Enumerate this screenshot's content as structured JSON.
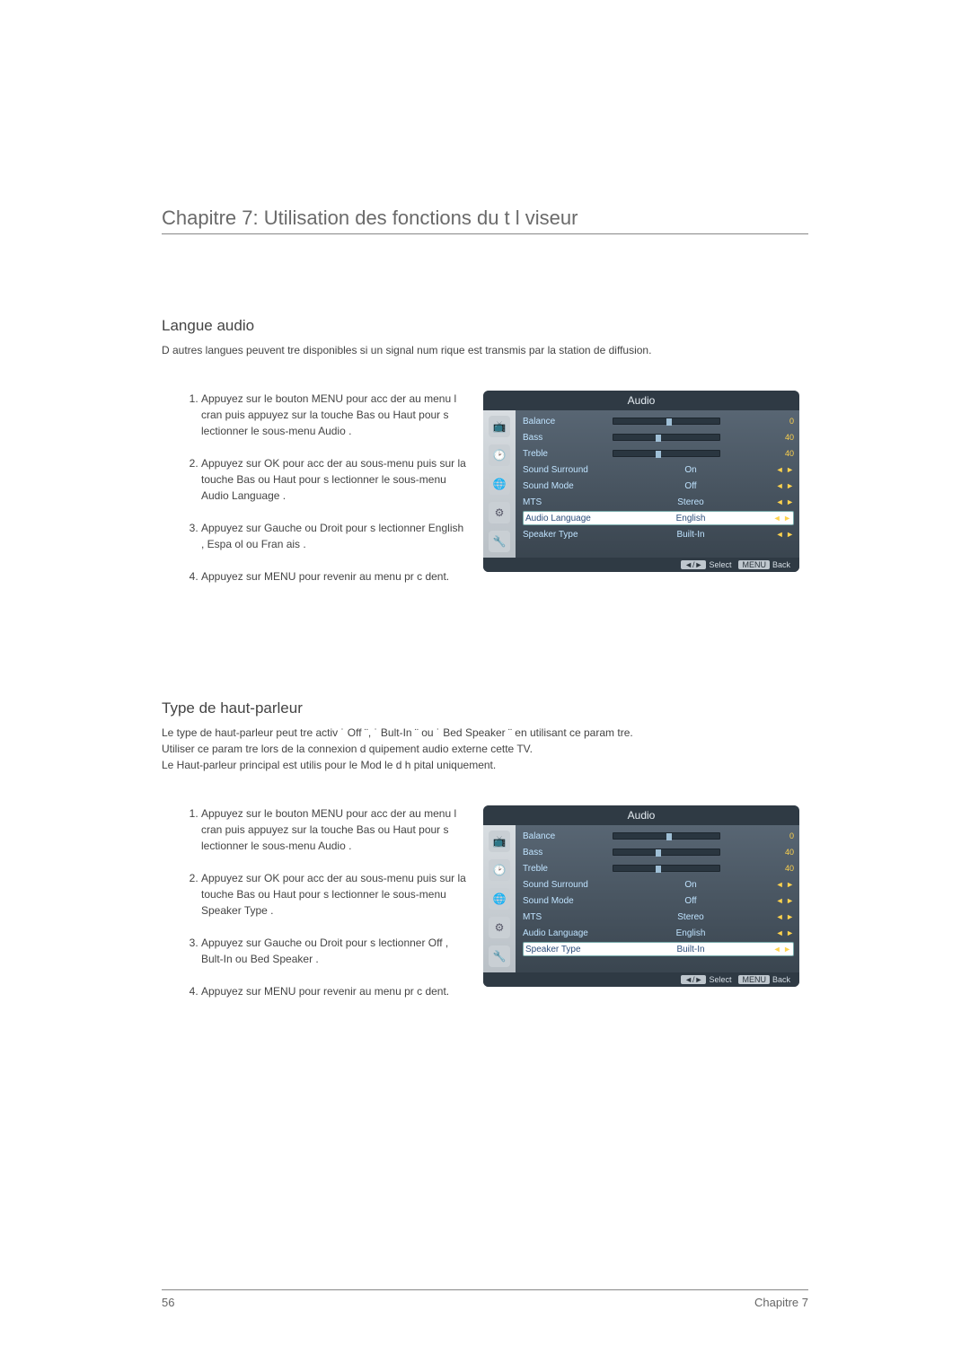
{
  "chapter": {
    "title": "Chapitre 7: Utilisation des fonctions du t l viseur"
  },
  "footer": {
    "page_num": "56",
    "chapter_label": "Chapitre 7"
  },
  "section1": {
    "title": "Langue audio",
    "intro": "D autres langues peuvent  tre disponibles si un signal num rique est transmis par la station de diffusion.",
    "steps": [
      "Appuyez sur le bouton   MENU  pour acc der au menu   l  cran puis appuyez sur la touche    Bas ou Haut   pour s lectionner le sous-menu    Audio .",
      "Appuyez sur  OK  pour acc der au sous-menu puis sur la touche  Bas  ou  Haut   pour s lectionner le sous-menu  Audio Language      .",
      "Appuyez sur  Gauche  ou  Droit   pour s lectionner   English ,  Espa ol   ou  Fran ais  .",
      "Appuyez sur  MENU  pour revenir au menu pr c dent."
    ],
    "osd": {
      "title": "Audio",
      "rows": [
        {
          "label": "Balance",
          "type": "slider",
          "percent": 50,
          "value": "0",
          "arrows": ""
        },
        {
          "label": "Bass",
          "type": "slider",
          "percent": 40,
          "value": "40",
          "arrows": ""
        },
        {
          "label": "Treble",
          "type": "slider",
          "percent": 40,
          "value": "40",
          "arrows": ""
        },
        {
          "label": "Sound Surround",
          "type": "text",
          "value": "On",
          "arrows": "◄  ►"
        },
        {
          "label": "Sound Mode",
          "type": "text",
          "value": "Off",
          "arrows": "◄  ►"
        },
        {
          "label": "MTS",
          "type": "text",
          "value": "Stereo",
          "arrows": "◄  ►"
        },
        {
          "label": "Audio Language",
          "type": "text",
          "value": "English",
          "arrows": "◄  ►",
          "highlight": true
        },
        {
          "label": "Speaker Type",
          "type": "text",
          "value": "Built-In",
          "arrows": "◄  ►"
        }
      ],
      "footer_nav": "◄/►",
      "footer_select": "Select",
      "footer_menu": "MENU",
      "footer_back": "Back"
    }
  },
  "section2": {
    "title": "Type de haut-parleur",
    "intro_line1": "Le type de haut-parleur peut  tre activ   ˙ Off ¨, ˙ Bult-In ¨ ou ˙ Bed Speaker ¨ en utilisant ce param tre.",
    "intro_line2": "Utiliser ce param tre lors de la connexion d  quipement audio externe   cette TV.",
    "intro_line3": "Le Haut-parleur principal est utilis  pour le Mod le d h pital uniquement.",
    "steps": [
      "Appuyez sur le bouton   MENU  pour acc der au menu   l  cran puis appuyez sur la touche    Bas ou Haut   pour s lectionner le sous-menu    Audio .",
      "Appuyez sur  OK  pour acc der au sous-menu puis sur la touche  Bas  ou  Haut   pour s lectionner le sous-menu  Speaker Type  .",
      "Appuyez sur  Gauche  ou  Droit   pour s lectionner   Off ,  Bult-In   ou  Bed Speaker  .",
      "Appuyez sur  MENU  pour revenir au menu pr c dent."
    ],
    "osd": {
      "title": "Audio",
      "rows": [
        {
          "label": "Balance",
          "type": "slider",
          "percent": 50,
          "value": "0",
          "arrows": ""
        },
        {
          "label": "Bass",
          "type": "slider",
          "percent": 40,
          "value": "40",
          "arrows": ""
        },
        {
          "label": "Treble",
          "type": "slider",
          "percent": 40,
          "value": "40",
          "arrows": ""
        },
        {
          "label": "Sound Surround",
          "type": "text",
          "value": "On",
          "arrows": "◄  ►"
        },
        {
          "label": "Sound Mode",
          "type": "text",
          "value": "Off",
          "arrows": "◄  ►"
        },
        {
          "label": "MTS",
          "type": "text",
          "value": "Stereo",
          "arrows": "◄  ►"
        },
        {
          "label": "Audio Language",
          "type": "text",
          "value": "English",
          "arrows": "◄  ►"
        },
        {
          "label": "Speaker Type",
          "type": "text",
          "value": "Built-In",
          "arrows": "◄  ►",
          "highlight": true
        }
      ],
      "footer_nav": "◄/►",
      "footer_select": "Select",
      "footer_menu": "MENU",
      "footer_back": "Back"
    }
  }
}
